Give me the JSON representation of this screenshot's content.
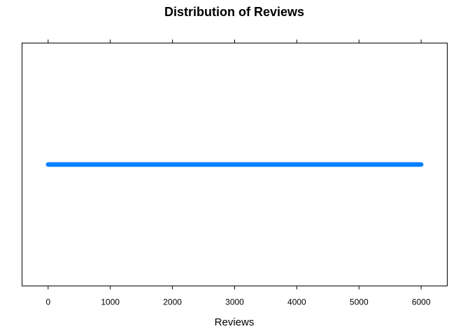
{
  "chart_data": {
    "type": "scatter",
    "title": "Distribution of Reviews",
    "xlabel": "Reviews",
    "ylabel": "",
    "xlim": [
      -420,
      6420
    ],
    "x_ticks": [
      0,
      1000,
      2000,
      3000,
      4000,
      5000,
      6000
    ],
    "x_tick_labels": [
      "0",
      "1000",
      "2000",
      "3000",
      "4000",
      "5000",
      "6000"
    ],
    "range": [
      0,
      6000
    ],
    "point_count": 601,
    "y_level": 0.5,
    "grid": false,
    "legend": "none",
    "color": "#0080ff"
  }
}
